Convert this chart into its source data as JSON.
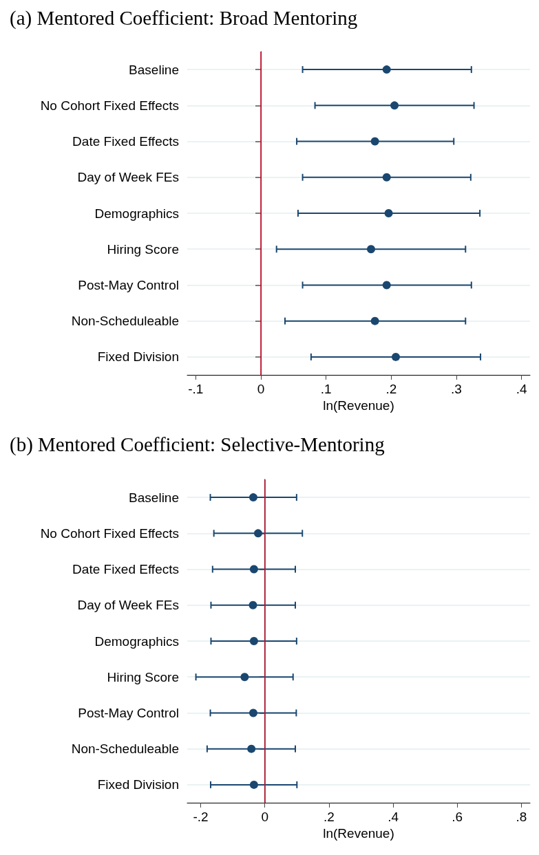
{
  "chart_data": [
    {
      "type": "scatter",
      "orientation": "horizontal",
      "title": "(a) Mentored Coefficient: Broad Mentoring",
      "xlabel": "ln(Revenue)",
      "categories": [
        "Baseline",
        "No Cohort Fixed Effects",
        "Date Fixed Effects",
        "Day of Week FEs",
        "Demographics",
        "Hiring Score",
        "Post-May Control",
        "Non-Scheduleable",
        "Fixed Division"
      ],
      "values": [
        0.193,
        0.205,
        0.175,
        0.193,
        0.196,
        0.169,
        0.193,
        0.175,
        0.207
      ],
      "errors": [
        [
          0.064,
          0.323
        ],
        [
          0.083,
          0.327
        ],
        [
          0.055,
          0.296
        ],
        [
          0.064,
          0.322
        ],
        [
          0.057,
          0.336
        ],
        [
          0.024,
          0.314
        ],
        [
          0.064,
          0.323
        ],
        [
          0.037,
          0.314
        ],
        [
          0.077,
          0.337
        ]
      ],
      "color": "#1a476f",
      "marker": "circle",
      "xlim": [
        -0.113,
        0.413
      ],
      "xticks": [
        {
          "value": -0.1,
          "label": "-.1"
        },
        0,
        {
          "value": 0.1,
          "label": ".1"
        },
        {
          "value": 0.2,
          "label": ".2"
        },
        {
          "value": 0.3,
          "label": ".3"
        },
        {
          "value": 0.4,
          "label": ".4"
        }
      ],
      "ref_lines": [
        {
          "axis": "x",
          "value": 0,
          "color": "#c8102e"
        }
      ],
      "grid": "y"
    },
    {
      "type": "scatter",
      "orientation": "horizontal",
      "title": "(b) Mentored Coefficient: Selective-Mentoring",
      "xlabel": "ln(Revenue)",
      "categories": [
        "Baseline",
        "No Cohort Fixed Effects",
        "Date Fixed Effects",
        "Day of Week FEs",
        "Demographics",
        "Hiring Score",
        "Post-May Control",
        "Non-Scheduleable",
        "Fixed Division"
      ],
      "values": [
        -0.036,
        -0.021,
        -0.034,
        -0.037,
        -0.034,
        -0.063,
        -0.036,
        -0.042,
        -0.034
      ],
      "errors": [
        [
          -0.17,
          0.099
        ],
        [
          -0.159,
          0.117
        ],
        [
          -0.163,
          0.095
        ],
        [
          -0.168,
          0.095
        ],
        [
          -0.168,
          0.099
        ],
        [
          -0.215,
          0.088
        ],
        [
          -0.17,
          0.098
        ],
        [
          -0.18,
          0.095
        ],
        [
          -0.169,
          0.1
        ]
      ],
      "color": "#1a476f",
      "marker": "circle",
      "xlim": [
        -0.242,
        0.827
      ],
      "xticks": [
        {
          "value": -0.2,
          "label": "-.2"
        },
        0,
        {
          "value": 0.2,
          "label": ".2"
        },
        {
          "value": 0.4,
          "label": ".4"
        },
        {
          "value": 0.6,
          "label": ".6"
        },
        {
          "value": 0.8,
          "label": ".8"
        }
      ],
      "ref_lines": [
        {
          "axis": "x",
          "value": 0,
          "color": "#c8102e"
        }
      ],
      "grid": "y"
    }
  ]
}
